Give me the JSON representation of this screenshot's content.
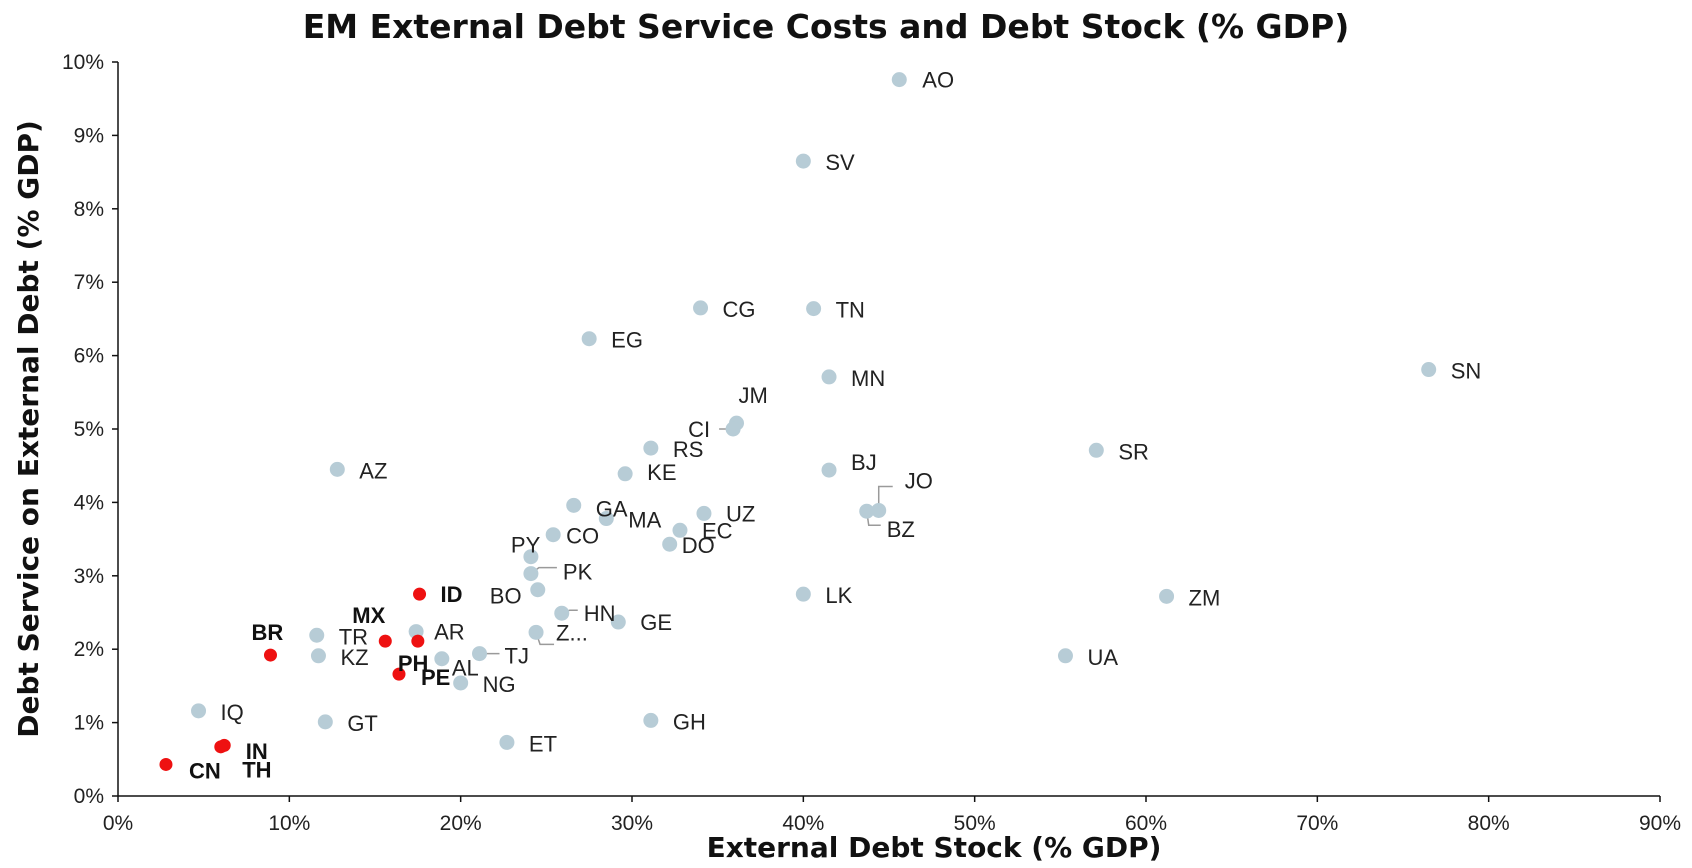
{
  "chart_data": {
    "type": "scatter",
    "title": "EM External Debt Service Costs and Debt Stock (% GDP)",
    "xlabel": "External Debt Stock (% GDP)",
    "ylabel": "Debt Service on External Debt (% GDP)",
    "xlim": [
      0,
      90
    ],
    "ylim": [
      0,
      10
    ],
    "x_ticks": [
      "0%",
      "10%",
      "20%",
      "30%",
      "40%",
      "50%",
      "60%",
      "70%",
      "80%",
      "90%"
    ],
    "y_ticks": [
      "0%",
      "1%",
      "2%",
      "3%",
      "4%",
      "5%",
      "6%",
      "7%",
      "8%",
      "9%",
      "10%"
    ],
    "grid": false,
    "legend": "none",
    "colors": {
      "other": "#b7ccd6",
      "highlight": "#ee1111"
    },
    "points": [
      {
        "label": "AO",
        "x": 45.6,
        "y": 9.76,
        "highlight": false
      },
      {
        "label": "SV",
        "x": 40.0,
        "y": 8.65,
        "highlight": false
      },
      {
        "label": "CG",
        "x": 34.0,
        "y": 6.65,
        "highlight": false
      },
      {
        "label": "TN",
        "x": 40.6,
        "y": 6.64,
        "highlight": false
      },
      {
        "label": "EG",
        "x": 27.5,
        "y": 6.23,
        "highlight": false
      },
      {
        "label": "SN",
        "x": 76.5,
        "y": 5.81,
        "highlight": false
      },
      {
        "label": "MN",
        "x": 41.5,
        "y": 5.71,
        "highlight": false
      },
      {
        "label": "JM",
        "x": 36.1,
        "y": 5.08,
        "highlight": false
      },
      {
        "label": "CI",
        "x": 35.9,
        "y": 5.0,
        "highlight": false
      },
      {
        "label": "RS",
        "x": 31.1,
        "y": 4.74,
        "highlight": false
      },
      {
        "label": "SR",
        "x": 57.1,
        "y": 4.71,
        "highlight": false
      },
      {
        "label": "AZ",
        "x": 12.8,
        "y": 4.45,
        "highlight": false
      },
      {
        "label": "BJ",
        "x": 41.5,
        "y": 4.44,
        "highlight": false
      },
      {
        "label": "KE",
        "x": 29.6,
        "y": 4.39,
        "highlight": false
      },
      {
        "label": "GA",
        "x": 26.6,
        "y": 3.96,
        "highlight": false
      },
      {
        "label": "JO",
        "x": 44.4,
        "y": 3.89,
        "highlight": false
      },
      {
        "label": "BZ",
        "x": 43.7,
        "y": 3.88,
        "highlight": false
      },
      {
        "label": "UZ",
        "x": 34.2,
        "y": 3.85,
        "highlight": false
      },
      {
        "label": "MA",
        "x": 28.5,
        "y": 3.78,
        "highlight": false
      },
      {
        "label": "EC",
        "x": 32.8,
        "y": 3.62,
        "highlight": false
      },
      {
        "label": "CO",
        "x": 25.4,
        "y": 3.56,
        "highlight": false
      },
      {
        "label": "DO",
        "x": 32.2,
        "y": 3.43,
        "highlight": false
      },
      {
        "label": "PY",
        "x": 24.1,
        "y": 3.26,
        "highlight": false
      },
      {
        "label": "PK",
        "x": 24.1,
        "y": 3.03,
        "highlight": false
      },
      {
        "label": "BO",
        "x": 24.5,
        "y": 2.81,
        "highlight": false
      },
      {
        "label": "ID",
        "x": 17.6,
        "y": 2.75,
        "highlight": true
      },
      {
        "label": "LK",
        "x": 40.0,
        "y": 2.75,
        "highlight": false
      },
      {
        "label": "ZM",
        "x": 61.2,
        "y": 2.72,
        "highlight": false
      },
      {
        "label": "HN",
        "x": 25.9,
        "y": 2.49,
        "highlight": false
      },
      {
        "label": "GE",
        "x": 29.2,
        "y": 2.37,
        "highlight": false
      },
      {
        "label": "AR",
        "x": 17.4,
        "y": 2.24,
        "highlight": false
      },
      {
        "label": "Z...",
        "x": 24.4,
        "y": 2.23,
        "highlight": false
      },
      {
        "label": "TR",
        "x": 11.6,
        "y": 2.19,
        "highlight": false
      },
      {
        "label": "MX",
        "x": 15.6,
        "y": 2.11,
        "highlight": true
      },
      {
        "label": "PH",
        "x": 17.5,
        "y": 2.11,
        "highlight": true
      },
      {
        "label": "TJ",
        "x": 21.1,
        "y": 1.94,
        "highlight": false
      },
      {
        "label": "BR",
        "x": 8.9,
        "y": 1.92,
        "highlight": true
      },
      {
        "label": "KZ",
        "x": 11.7,
        "y": 1.91,
        "highlight": false
      },
      {
        "label": "UA",
        "x": 55.3,
        "y": 1.91,
        "highlight": false
      },
      {
        "label": "AL",
        "x": 18.9,
        "y": 1.87,
        "highlight": false
      },
      {
        "label": "PE",
        "x": 16.4,
        "y": 1.66,
        "highlight": true
      },
      {
        "label": "NG",
        "x": 20.0,
        "y": 1.54,
        "highlight": false
      },
      {
        "label": "IQ",
        "x": 4.7,
        "y": 1.16,
        "highlight": false
      },
      {
        "label": "GH",
        "x": 31.1,
        "y": 1.03,
        "highlight": false
      },
      {
        "label": "GT",
        "x": 12.1,
        "y": 1.01,
        "highlight": false
      },
      {
        "label": "ET",
        "x": 22.7,
        "y": 0.73,
        "highlight": false
      },
      {
        "label": "TH",
        "x": 6.2,
        "y": 0.69,
        "highlight": true
      },
      {
        "label": "IN",
        "x": 6.0,
        "y": 0.67,
        "highlight": true
      },
      {
        "label": "CN",
        "x": 2.8,
        "y": 0.43,
        "highlight": true
      }
    ]
  }
}
